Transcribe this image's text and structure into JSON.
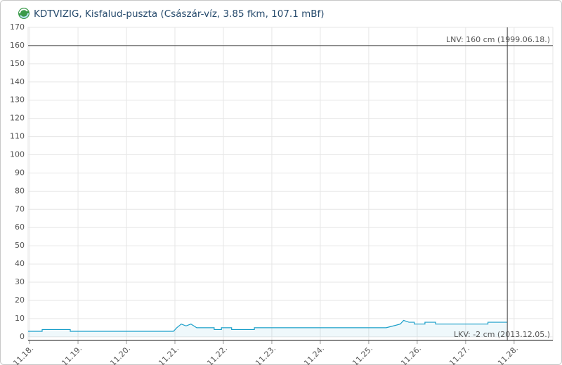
{
  "chart_data": {
    "type": "line",
    "title": "KDTVIZIG, Kisfalud-puszta (Császár-víz, 3.85 fkm, 107.1 mBf)",
    "x": [
      17.97,
      18.26,
      18.26,
      18.84,
      18.84,
      20.97,
      21.04,
      21.13,
      21.23,
      21.33,
      21.45,
      21.81,
      21.81,
      21.96,
      21.96,
      22.17,
      22.17,
      22.64,
      22.64,
      25.36,
      25.51,
      25.65,
      25.72,
      25.83,
      25.94,
      25.94,
      26.16,
      26.16,
      26.38,
      26.38,
      27.46,
      27.46,
      27.86
    ],
    "series": [
      {
        "color": "#1a9fc9",
        "values": [
          3,
          3,
          4,
          4,
          3,
          3,
          5,
          7,
          6,
          7,
          5,
          5,
          4,
          4,
          5,
          5,
          4,
          4,
          5,
          5,
          6,
          7,
          9,
          8,
          8,
          7,
          7,
          8,
          8,
          7,
          7,
          8,
          8
        ]
      }
    ],
    "xlim": [
      17.97,
      28.8
    ],
    "xticks": [
      {
        "value": 18,
        "label": "11.18."
      },
      {
        "value": 19,
        "label": "11.19."
      },
      {
        "value": 20,
        "label": "11.20."
      },
      {
        "value": 21,
        "label": "11.21."
      },
      {
        "value": 22,
        "label": "11.22."
      },
      {
        "value": 23,
        "label": "11.23."
      },
      {
        "value": 24,
        "label": "11.24."
      },
      {
        "value": 25,
        "label": "11.25."
      },
      {
        "value": 26,
        "label": "11.26."
      },
      {
        "value": 27,
        "label": "11.27."
      },
      {
        "value": 28,
        "label": "11.28."
      }
    ],
    "ylim": [
      -2,
      170
    ],
    "yticks": [
      0,
      10,
      20,
      30,
      40,
      50,
      60,
      70,
      80,
      90,
      100,
      110,
      120,
      130,
      140,
      150,
      160,
      170
    ],
    "grid": true,
    "reference_lines": [
      {
        "value": 160,
        "label": "LNV: 160 cm (1999.06.18.)"
      },
      {
        "value": -2,
        "label": "LKV: -2 cm (2013.12.05.)"
      }
    ],
    "x_marker": 27.86
  }
}
